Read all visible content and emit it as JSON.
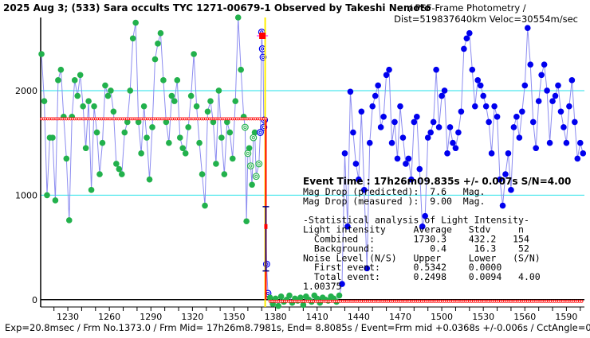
{
  "chart_data": {
    "type": "scatter",
    "title": "2025 Aug 3; (533) Sara occults TYC 1271-00679-1 Observed by Takeshi Nemoto",
    "subtitle": "/ PSF-Frame Photometry /",
    "subtitle2": "Dist=519837640km Veloc=30554m/sec",
    "footer": "Exp=20.8msec / Frm No.1373.0 / Frm Mid= 17h26m8.7981s,  End= 8.8085s / Event=Frm mid +0.0368s +/-0.006s / CctAngle=0.0deg",
    "xlim": [
      1210.4,
      1603
    ],
    "ylim": [
      -70,
      2700
    ],
    "x_ticks": [
      1230,
      1260,
      1290,
      1320,
      1350,
      1380,
      1410,
      1440,
      1470,
      1500,
      1530,
      1560,
      1590
    ],
    "y_ticks": [
      0,
      1000,
      2000
    ],
    "gridlines_y": [
      1000,
      2000
    ],
    "event_frame": 1372.5,
    "series": [
      {
        "name": "pre-event",
        "color": "#22b14c",
        "marker": "filled",
        "x_start": 1211,
        "x_step": 2,
        "values": [
          2350,
          1900,
          1000,
          1550,
          1550,
          950,
          2100,
          2200,
          1750,
          1350,
          760,
          1750,
          2100,
          1950,
          2150,
          1850,
          1450,
          1900,
          1050,
          1850,
          1600,
          1200,
          1500,
          2050,
          1950,
          2000,
          1800,
          1300,
          1250,
          1200,
          1600,
          1700,
          2000,
          2500,
          2650,
          1700,
          1400,
          1850,
          1550,
          1150,
          1650,
          2300,
          2450,
          2550,
          2100,
          1700,
          1500,
          1950,
          1900,
          2100,
          1550,
          1450,
          1400,
          1650,
          1950,
          2350,
          1850,
          1500,
          1200,
          900,
          1800,
          1900,
          1700,
          1300,
          2000,
          1550,
          1200,
          1700,
          1600,
          1350,
          1900,
          2700,
          2200,
          1750,
          750,
          1450,
          1100,
          1600
        ]
      },
      {
        "name": "pre-event-fit",
        "color": "#22b14c",
        "marker": "hollow",
        "x": [
          1358,
          1360,
          1362,
          1364,
          1366,
          1368
        ],
        "values": [
          1650,
          1400,
          1280,
          1550,
          1180,
          1300
        ]
      },
      {
        "name": "event-frames",
        "color": "#0000ee",
        "marker": "hollow",
        "x": [
          1369,
          1370,
          1370.5,
          1371,
          1371.5,
          1372,
          1373.5,
          1374.5
        ],
        "values": [
          1600,
          2560,
          2400,
          2320,
          1650,
          1720,
          340,
          60
        ]
      },
      {
        "name": "occulted",
        "color": "#22b14c",
        "marker": "filled",
        "x_start": 1376,
        "x_step": 2,
        "values": [
          20,
          -40,
          10,
          -60,
          30,
          -20,
          0,
          40,
          -30,
          10,
          -10,
          20,
          -50,
          30,
          0,
          -20,
          40,
          10,
          -30,
          20,
          0,
          -10,
          30,
          10,
          -20,
          40
        ]
      },
      {
        "name": "post-event",
        "color": "#0000ee",
        "marker": "filled",
        "x_start": 1428,
        "x_step": 2,
        "values": [
          150,
          1400,
          700,
          1990,
          1600,
          1300,
          1150,
          1800,
          1050,
          300,
          1500,
          1850,
          1950,
          2050,
          1650,
          1750,
          2150,
          2200,
          1500,
          1700,
          1350,
          1850,
          1550,
          1300,
          1350,
          1150,
          1700,
          1750,
          1250,
          700,
          800,
          1550,
          1600,
          1700,
          2200,
          1650,
          1950,
          2000,
          1400,
          1650,
          1500,
          1450,
          1600,
          1800,
          2400,
          2500,
          2550,
          2200,
          1850,
          2100,
          2050,
          1950,
          1850,
          1700,
          1400,
          1850,
          1750,
          1150,
          900,
          1200,
          1400,
          1050,
          1650,
          1750,
          1550,
          1800,
          2050,
          2600,
          2250,
          1700,
          1450,
          1900,
          2150,
          2250,
          2000,
          1500,
          1900,
          1950,
          2050,
          1800,
          1650,
          1500,
          1850,
          2100,
          1700,
          1350,
          1500,
          1400
        ]
      }
    ],
    "model": {
      "color": "#ff0000",
      "upper_level": 1730.3,
      "lower_level": 0,
      "from": 1211,
      "event": 1373,
      "to": 1602
    },
    "peak_marker": {
      "x": 1370.5,
      "value": 2525,
      "color": "#ff0000"
    },
    "error_bar": {
      "x": 1373,
      "value": 700,
      "upper": 890,
      "lower": 275
    },
    "stats_text": {
      "event_time": "Event Time : 17h26m09.835s  +/- 0.007s  S/N=4.00",
      "lines": [
        "Mag Drop (predicted):  7.6   Mag.",
        "Mag Drop (measured ):  9.00  Mag.",
        "",
        "-Statistical analysis of Light Intensity-",
        "Light intensity     Average   Stdv     n",
        "  Combined  :       1730.3    432.2   154",
        "  Background:          0.4     16.3    52",
        "Noise Level (N/S)   Upper     Lower   (S/N)",
        "  First event:      0.5342    0.0000",
        "  Total event:      0.2498    0.0094   4.00",
        "1.00375"
      ]
    }
  }
}
